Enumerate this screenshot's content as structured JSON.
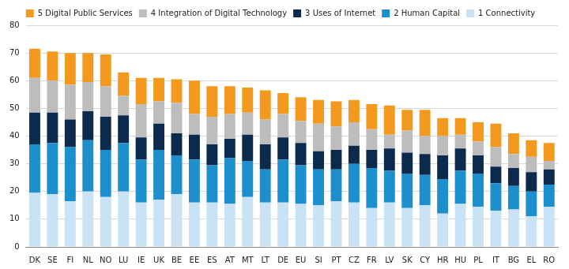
{
  "chart_data": {
    "type": "bar",
    "stacked": true,
    "grid": true,
    "legend": "top",
    "categories": [
      "DK",
      "SE",
      "FI",
      "NL",
      "NO",
      "LU",
      "IE",
      "UK",
      "BE",
      "EE",
      "ES",
      "AT",
      "MT",
      "LT",
      "DE",
      "EU",
      "SI",
      "PT",
      "CZ",
      "FR",
      "LV",
      "SK",
      "CY",
      "HR",
      "HU",
      "PL",
      "IT",
      "BG",
      "EL",
      "RO"
    ],
    "ylim": [
      0,
      80
    ],
    "yticks": [
      0,
      10,
      20,
      30,
      40,
      50,
      60,
      70,
      80
    ],
    "series": [
      {
        "name": "1 Connectivity",
        "color": "#c9e3f5",
        "values": [
          19.5,
          19,
          16.5,
          20,
          18,
          20,
          16,
          17,
          19,
          16,
          16,
          15.5,
          18,
          16,
          16,
          15.5,
          15,
          16.5,
          16,
          14,
          16,
          14,
          15,
          12,
          15.5,
          14.5,
          13,
          13.5,
          11,
          14.5
        ]
      },
      {
        "name": "2 Human Capital",
        "color": "#1d8fcc",
        "values": [
          17.5,
          18.5,
          19.5,
          18.5,
          17,
          17.5,
          15.5,
          18,
          14,
          15.5,
          13.5,
          16.5,
          13,
          12,
          15.5,
          14,
          13,
          11.5,
          14,
          14.5,
          11.5,
          12.5,
          11,
          12.5,
          12,
          12,
          10,
          8.5,
          9,
          8
        ]
      },
      {
        "name": "3 Uses of Internet",
        "color": "#0c2a4c",
        "values": [
          11.5,
          11,
          10,
          10.5,
          12,
          10,
          8,
          9.5,
          8,
          9,
          7.5,
          7,
          9.5,
          9,
          8,
          8,
          6.5,
          7,
          6.5,
          6.5,
          8,
          7.5,
          7.5,
          8.5,
          8,
          6.5,
          6,
          6.5,
          7,
          5.5
        ]
      },
      {
        "name": "4 Integration of Digital Technology",
        "color": "#bdbdbd",
        "values": [
          12.5,
          11.5,
          12.5,
          10.5,
          11,
          7,
          12,
          8,
          11,
          7.5,
          10,
          9,
          8,
          9,
          8.5,
          8,
          10,
          8.5,
          8.5,
          7.5,
          5,
          8,
          6.5,
          7,
          5,
          5,
          7,
          5,
          5.5,
          3
        ]
      },
      {
        "name": "5 Digital Public Services",
        "color": "#f39a1e",
        "values": [
          10.5,
          10.5,
          11.5,
          10.5,
          11.5,
          8.5,
          9.5,
          8.5,
          8.5,
          12,
          11,
          10,
          9,
          10.5,
          7.5,
          8.5,
          8.5,
          9,
          8,
          9,
          10.5,
          7.5,
          9.5,
          6.5,
          6,
          7,
          8.5,
          7.5,
          6,
          6.5
        ]
      }
    ]
  }
}
